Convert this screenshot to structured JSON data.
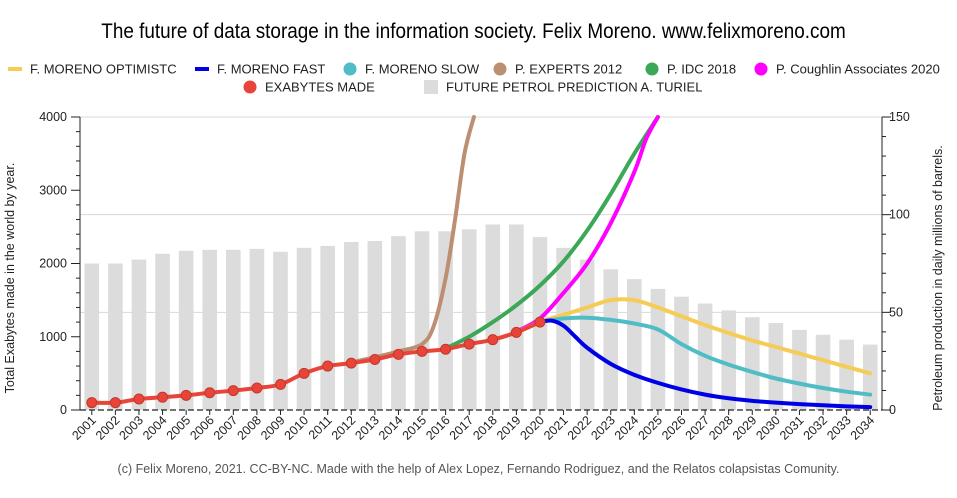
{
  "page": {
    "title": "The future of data storage in the information society. Felix Moreno. www.felixmoreno.com",
    "footer": "(c) Felix Moreno, 2021. CC-BY-NC. Made with the help of Alex Lopez, Fernando Rodriguez, and the Relatos colapsistas Comunity."
  },
  "chart_data": {
    "type": "line",
    "title": "The future of data storage in the information society. Felix Moreno. www.felixmoreno.com",
    "categories": [
      "2001",
      "2002",
      "2003",
      "2004",
      "2005",
      "2006",
      "2007",
      "2008",
      "2009",
      "2010",
      "2011",
      "2012",
      "2013",
      "2014",
      "2015",
      "2016",
      "2017",
      "2018",
      "2019",
      "2020",
      "2021",
      "2022",
      "2023",
      "2024",
      "2025",
      "2026",
      "2027",
      "2028",
      "2029",
      "2030",
      "2031",
      "2032",
      "2033",
      "2034"
    ],
    "ylabel": "Total Exabytes made in the world by year.",
    "y2label": "Petroleum production in daily millions of barrels.",
    "ylim": [
      0,
      4000
    ],
    "y2lim": [
      0,
      150
    ],
    "yticks": [
      0,
      1000,
      2000,
      3000,
      4000
    ],
    "y2ticks": [
      0,
      50,
      100,
      150
    ],
    "grid": true,
    "legend_position": "top",
    "bars": {
      "name": "FUTURE PETROL PREDICTION A. TURIEL",
      "axis": "right",
      "color": "#dcdcdc",
      "values": [
        75,
        75,
        77,
        80,
        81.5,
        82,
        82,
        82.5,
        81,
        83,
        84,
        86,
        86.5,
        89,
        91.5,
        91.5,
        92.5,
        95,
        95,
        88.5,
        83,
        77,
        72,
        67,
        62,
        58,
        54.5,
        51,
        47.5,
        44.5,
        41,
        38.5,
        36,
        33.5
      ]
    },
    "series": [
      {
        "name": "EXABYTES MADE",
        "color": "#e8443a",
        "markers": true,
        "x": [
          2001,
          2002,
          2003,
          2004,
          2005,
          2006,
          2007,
          2008,
          2009,
          2010,
          2011,
          2012,
          2013,
          2014,
          2015,
          2016,
          2017,
          2018,
          2019,
          2020
        ],
        "values": [
          100,
          100,
          150,
          175,
          200,
          235,
          265,
          300,
          350,
          500,
          600,
          640,
          690,
          760,
          800,
          830,
          900,
          960,
          1060,
          1200
        ]
      },
      {
        "name": "P. EXPERTS 2012",
        "color": "#bc8f72",
        "x": [
          2012,
          2013,
          2014,
          2015,
          2015.5,
          2016,
          2016.4,
          2016.8,
          2017.2
        ],
        "values": [
          650,
          720,
          800,
          900,
          1150,
          1800,
          2600,
          3500,
          4000
        ]
      },
      {
        "name": "P. IDC 2018",
        "color": "#3aa857",
        "x": [
          2016,
          2017,
          2018,
          2019,
          2020,
          2021,
          2022,
          2023,
          2024,
          2025
        ],
        "values": [
          840,
          1000,
          1200,
          1430,
          1700,
          2030,
          2450,
          2950,
          3500,
          4000
        ]
      },
      {
        "name": "P. Coughlin Associates 2020",
        "color": "#ff00ff",
        "x": [
          2019,
          2020,
          2021,
          2022,
          2023,
          2024,
          2024.5,
          2025
        ],
        "values": [
          1070,
          1250,
          1600,
          2000,
          2550,
          3250,
          3700,
          4000
        ]
      },
      {
        "name": "F. MORENO OPTIMISTC",
        "color": "#f5cc55",
        "x": [
          2018,
          2019,
          2020,
          2021,
          2022,
          2023,
          2024,
          2025,
          2026,
          2027,
          2028,
          2029,
          2030,
          2031,
          2032,
          2033,
          2034
        ],
        "values": [
          960,
          1060,
          1200,
          1300,
          1400,
          1500,
          1500,
          1400,
          1280,
          1160,
          1050,
          950,
          860,
          770,
          680,
          590,
          500
        ]
      },
      {
        "name": "F. MORENO SLOW",
        "color": "#4fbcc6",
        "x": [
          2020,
          2021,
          2022,
          2023,
          2024,
          2025,
          2026,
          2027,
          2028,
          2029,
          2030,
          2031,
          2032,
          2033,
          2034
        ],
        "values": [
          1200,
          1250,
          1260,
          1230,
          1180,
          1100,
          900,
          740,
          620,
          520,
          430,
          360,
          300,
          250,
          210
        ]
      },
      {
        "name": "F. MORENO FAST",
        "color": "#0000e6",
        "x": [
          2020,
          2020.5,
          2021,
          2021.5,
          2022,
          2023,
          2024,
          2025,
          2026,
          2027,
          2028,
          2029,
          2030,
          2031,
          2032,
          2033,
          2034
        ],
        "values": [
          1200,
          1220,
          1150,
          1000,
          850,
          630,
          480,
          370,
          280,
          210,
          160,
          125,
          100,
          80,
          65,
          50,
          40
        ]
      }
    ],
    "legend": [
      {
        "label": "F. MORENO OPTIMISTC",
        "color": "#f5cc55",
        "shape": "line"
      },
      {
        "label": "F. MORENO FAST",
        "color": "#0000e6",
        "shape": "line"
      },
      {
        "label": "F. MORENO SLOW",
        "color": "#4fbcc6",
        "shape": "dot"
      },
      {
        "label": "P. EXPERTS 2012",
        "color": "#bc8f72",
        "shape": "dot"
      },
      {
        "label": "P. IDC 2018",
        "color": "#3aa857",
        "shape": "dot"
      },
      {
        "label": "P. Coughlin Associates 2020",
        "color": "#ff00ff",
        "shape": "dot"
      },
      {
        "label": "EXABYTES MADE",
        "color": "#e8443a",
        "shape": "dot"
      },
      {
        "label": "FUTURE PETROL PREDICTION A. TURIEL",
        "color": "#dcdcdc",
        "shape": "rect"
      }
    ]
  }
}
